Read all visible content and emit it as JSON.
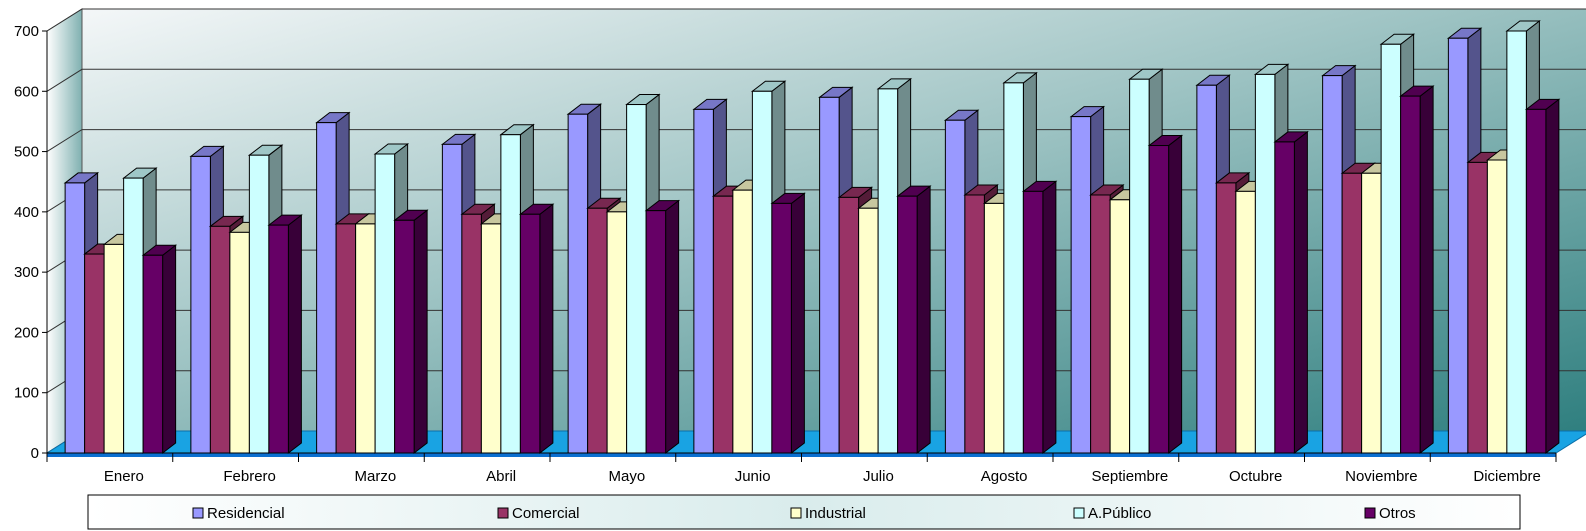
{
  "chart_data": {
    "type": "bar",
    "title": "",
    "xlabel": "",
    "ylabel": "",
    "ylim": [
      0,
      700
    ],
    "yticks": [
      "0",
      "100",
      "200",
      "300",
      "400",
      "500",
      "600",
      "700"
    ],
    "grid": true,
    "legend_position": "bottom",
    "categories": [
      "Enero",
      "Febrero",
      "Marzo",
      "Abril",
      "Mayo",
      "Junio",
      "Julio",
      "Agosto",
      "Septiembre",
      "Octubre",
      "Noviembre",
      "Diciembre"
    ],
    "series": [
      {
        "name": "Residencial",
        "color": "#9999ff",
        "values": [
          448,
          492,
          548,
          512,
          562,
          570,
          590,
          552,
          558,
          610,
          626,
          688
        ]
      },
      {
        "name": "Comercial",
        "color": "#993366",
        "values": [
          330,
          376,
          380,
          396,
          406,
          426,
          424,
          428,
          428,
          448,
          464,
          482
        ]
      },
      {
        "name": "Industrial",
        "color": "#ffffcc",
        "values": [
          346,
          366,
          380,
          380,
          400,
          436,
          406,
          414,
          420,
          434,
          464,
          486
        ]
      },
      {
        "name": "A.Público",
        "color": "#ccffff",
        "values": [
          456,
          494,
          496,
          528,
          578,
          600,
          604,
          614,
          620,
          628,
          678,
          700
        ]
      },
      {
        "name": "Otros",
        "color": "#660066",
        "values": [
          328,
          378,
          386,
          396,
          402,
          414,
          426,
          434,
          510,
          516,
          592,
          570
        ]
      }
    ]
  }
}
